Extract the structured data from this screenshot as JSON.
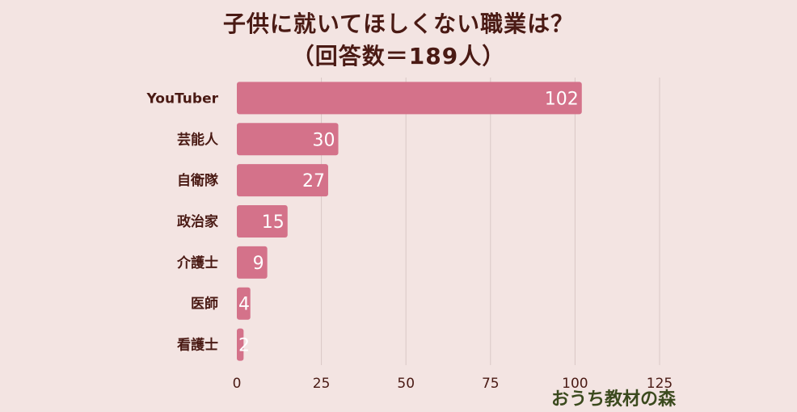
{
  "title_line1": "子供に就いてほしくない職業は？",
  "title_line2": "（回答数＝189人）",
  "watermark": "おうち教材の森",
  "colors": {
    "bar": "#d4728a",
    "grid": "#d9c7c5",
    "background": "#f3e4e2",
    "text": "#4a1a14"
  },
  "chart_data": {
    "type": "bar",
    "orientation": "horizontal",
    "categories": [
      "YouTuber",
      "芸能人",
      "自衛隊",
      "政治家",
      "介護士",
      "医師",
      "看護士"
    ],
    "values": [
      102,
      30,
      27,
      15,
      9,
      4,
      2
    ],
    "xlim": [
      0,
      125
    ],
    "xticks": [
      "0",
      "25",
      "50",
      "75",
      "100",
      "125"
    ],
    "grid": true
  }
}
